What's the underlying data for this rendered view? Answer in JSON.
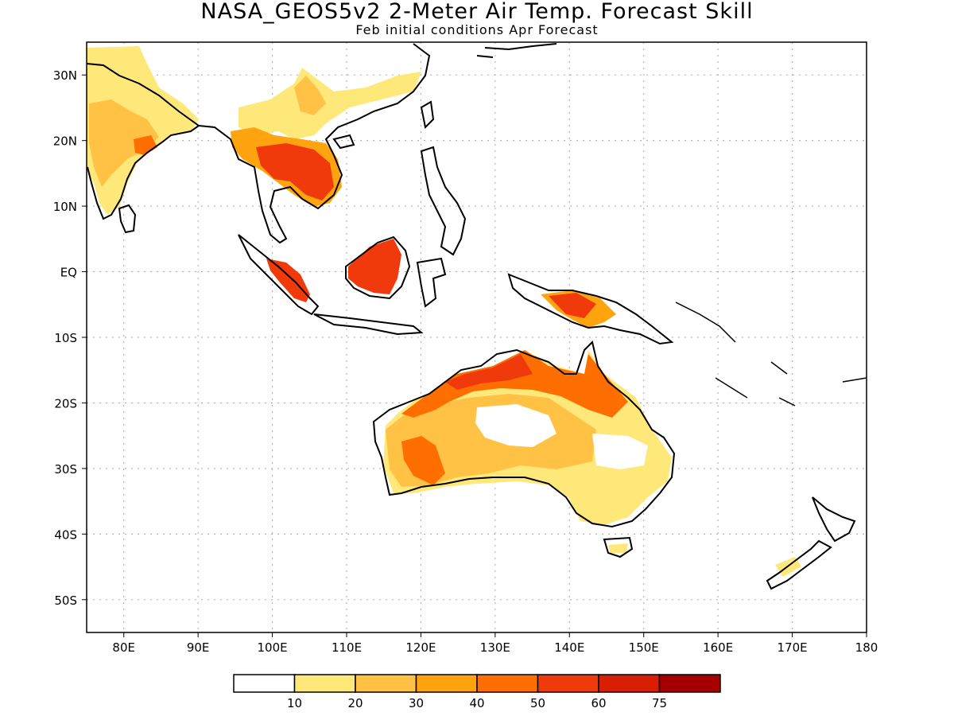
{
  "title": "NASA_GEOS5v2 2-Meter Air Temp. Forecast Skill",
  "subtitle": "Feb initial conditions  Apr Forecast",
  "map": {
    "lon_range": [
      75,
      180
    ],
    "lat_range": [
      -55,
      35
    ],
    "lat_ticks": [
      {
        "value": 30,
        "label": "30N"
      },
      {
        "value": 20,
        "label": "20N"
      },
      {
        "value": 10,
        "label": "10N"
      },
      {
        "value": 0,
        "label": "EQ"
      },
      {
        "value": -10,
        "label": "10S"
      },
      {
        "value": -20,
        "label": "20S"
      },
      {
        "value": -30,
        "label": "30S"
      },
      {
        "value": -40,
        "label": "40S"
      },
      {
        "value": -50,
        "label": "50S"
      }
    ],
    "lon_ticks": [
      {
        "value": 80,
        "label": "80E"
      },
      {
        "value": 90,
        "label": "90E"
      },
      {
        "value": 100,
        "label": "100E"
      },
      {
        "value": 110,
        "label": "110E"
      },
      {
        "value": 120,
        "label": "120E"
      },
      {
        "value": 130,
        "label": "130E"
      },
      {
        "value": 140,
        "label": "140E"
      },
      {
        "value": 150,
        "label": "150E"
      },
      {
        "value": 160,
        "label": "160E"
      },
      {
        "value": 170,
        "label": "170E"
      },
      {
        "value": 180,
        "label": "180"
      }
    ],
    "grid": true
  },
  "colorbar": {
    "colors": [
      "#ffffff",
      "#ffe87a",
      "#ffc244",
      "#ffa40e",
      "#ff6e00",
      "#f03a0c",
      "#d81e05",
      "#a50000"
    ],
    "labels": [
      "10",
      "20",
      "30",
      "40",
      "50",
      "60",
      "75"
    ]
  }
}
